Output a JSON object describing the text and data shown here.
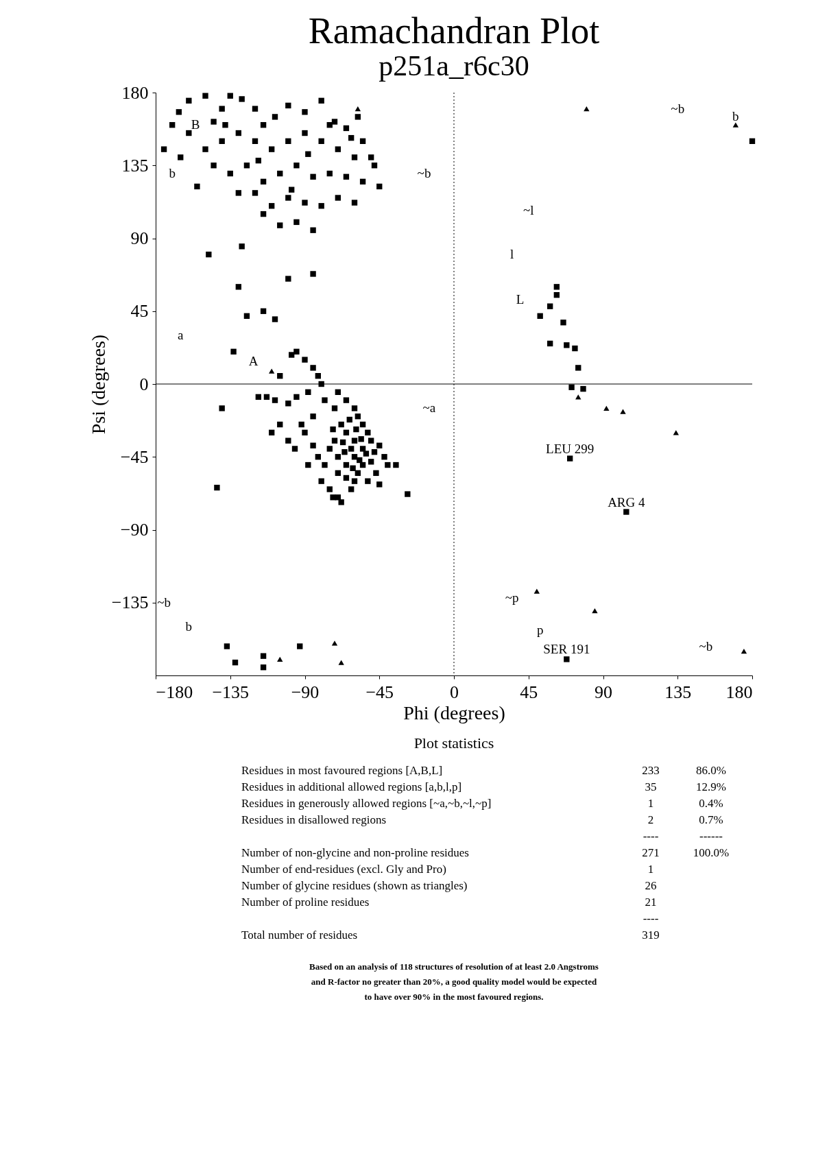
{
  "chart_data": {
    "type": "scatter",
    "title": "Ramachandran Plot",
    "subtitle": "p251a_r6c30",
    "xlabel": "Phi (degrees)",
    "ylabel": "Psi (degrees)",
    "xlim": [
      -180,
      180
    ],
    "ylim": [
      -180,
      180
    ],
    "xticks": [
      -180,
      -135,
      -90,
      -45,
      0,
      45,
      90,
      135,
      180
    ],
    "yticks": [
      -135,
      -90,
      -45,
      0,
      45,
      90,
      135,
      180
    ],
    "grid": false,
    "series": [
      {
        "color": "#000000",
        "marker": "square",
        "x": [
          -166,
          -160,
          -150,
          -145,
          -140,
          -135,
          -128,
          -120,
          -115,
          -108,
          -100,
          -90,
          -80,
          -72,
          -65,
          -58,
          -55,
          -50,
          -60,
          -70,
          -80,
          -90,
          -100,
          -110,
          -120,
          -130,
          -140,
          -150,
          -160,
          -165,
          -145,
          -135,
          -125,
          -115,
          -105,
          -95,
          -85,
          -75,
          -65,
          -55,
          -48,
          -45,
          -70,
          -80,
          -90,
          -100,
          -110,
          -120,
          -60,
          -95,
          -85,
          -105,
          -115,
          -130,
          -155,
          -175,
          -170,
          -98,
          -88,
          -62,
          -75,
          -118,
          -138,
          -148,
          -130,
          -128,
          -115,
          -108,
          -100,
          -85,
          -125,
          -133,
          -140,
          -143,
          -110,
          -105,
          -98,
          -95,
          -90,
          -85,
          -82,
          -80,
          -88,
          -95,
          -100,
          -108,
          -113,
          -118,
          -105,
          -100,
          -90,
          -85,
          -78,
          -72,
          -70,
          -65,
          -60,
          -58,
          -55,
          -52,
          -50,
          -48,
          -45,
          -42,
          -40,
          -55,
          -60,
          -65,
          -68,
          -72,
          -75,
          -70,
          -65,
          -60,
          -58,
          -55,
          -62,
          -66,
          -56,
          -50,
          -47,
          -52,
          -60,
          -65,
          -70,
          -78,
          -82,
          -85,
          -88,
          -80,
          -75,
          -70,
          -62,
          -45,
          -35,
          -28,
          -68,
          -73,
          -92,
          -96,
          -63,
          -59,
          -53,
          -57,
          -61,
          -67,
          -73,
          62,
          62,
          58,
          52,
          66,
          58,
          68,
          73,
          75,
          71,
          78,
          70,
          104,
          68,
          180,
          -137,
          -132,
          -115,
          -115,
          -93
        ],
        "values": [
          168,
          175,
          178,
          162,
          170,
          178,
          176,
          170,
          160,
          165,
          172,
          168,
          175,
          162,
          158,
          165,
          150,
          140,
          140,
          145,
          150,
          155,
          150,
          145,
          150,
          155,
          150,
          145,
          155,
          140,
          135,
          130,
          135,
          125,
          130,
          135,
          128,
          130,
          128,
          125,
          135,
          122,
          115,
          110,
          112,
          115,
          110,
          118,
          112,
          100,
          95,
          98,
          105,
          118,
          122,
          145,
          160,
          120,
          142,
          152,
          160,
          138,
          160,
          80,
          60,
          85,
          45,
          40,
          65,
          68,
          42,
          20,
          -15,
          -64,
          -30,
          5,
          18,
          20,
          15,
          10,
          5,
          0,
          -5,
          -8,
          -12,
          -10,
          -8,
          -8,
          -25,
          -35,
          -30,
          -20,
          -10,
          -15,
          -5,
          -10,
          -15,
          -20,
          -25,
          -30,
          -35,
          -42,
          -38,
          -45,
          -50,
          -40,
          -35,
          -30,
          -25,
          -35,
          -40,
          -45,
          -50,
          -45,
          -55,
          -50,
          -40,
          -42,
          -34,
          -48,
          -55,
          -60,
          -60,
          -58,
          -55,
          -50,
          -45,
          -38,
          -50,
          -60,
          -65,
          -70,
          -65,
          -62,
          -50,
          -68,
          -73,
          -70,
          -25,
          -40,
          -22,
          -28,
          -43,
          -47,
          -52,
          -36,
          -28,
          60,
          55,
          48,
          42,
          38,
          25,
          24,
          22,
          10,
          -2,
          -3,
          -46,
          -79,
          -170,
          150,
          -162,
          -172,
          -168,
          -175,
          -162
        ]
      },
      {
        "color": "#000000",
        "marker": "triangle",
        "x": [
          -58,
          80,
          170,
          175,
          -72,
          -105,
          -68,
          50,
          85,
          92,
          102,
          134,
          75,
          -110
        ],
        "values": [
          170,
          170,
          160,
          -165,
          -160,
          -170,
          -172,
          -128,
          -140,
          -15,
          -17,
          -30,
          -8,
          8
        ]
      }
    ],
    "ref_lines": [
      {
        "axis": "x",
        "value": 0,
        "line_style": "dotted"
      },
      {
        "axis": "y",
        "value": 0,
        "line_style": "solid"
      }
    ],
    "annotations": [
      "B",
      "b",
      "~b",
      "~l",
      "l",
      "L",
      "a",
      "A",
      "~a",
      "~b",
      "b",
      "~b",
      "b",
      "~p",
      "p",
      "~b",
      {
        "text": "LEU 299",
        "x": 70,
        "y": -46
      },
      {
        "text": "ARG  4",
        "x": 104,
        "y": -79
      },
      {
        "text": "SER 191",
        "x": 68,
        "y": -170
      },
      "Plot statistics",
      "Residues in most favoured regions  [A,B,L]\t233\t86.0%",
      "Residues in additional allowed regions  [a,b,l,p]\t35\t12.9%",
      "Residues in generously allowed regions  [~a,~b,~l,~p]\t1\t0.4%",
      "Residues in disallowed regions\t2\t0.7%",
      "\t----\t------",
      "Number of non-glycine and non-proline residues\t271\t100.0%",
      "Number of end-residues (excl. Gly and Pro)\t1",
      "Number of glycine residues (shown as triangles)\t26",
      "Number of proline residues\t21",
      "\t----",
      "Total number of residues\t319",
      "Based on an analysis of 118 structures of resolution of at least 2.0 Angstroms",
      "and R-factor no greater than 20%, a good quality model would be expected",
      "to have over 90% in the most favoured regions."
    ]
  }
}
